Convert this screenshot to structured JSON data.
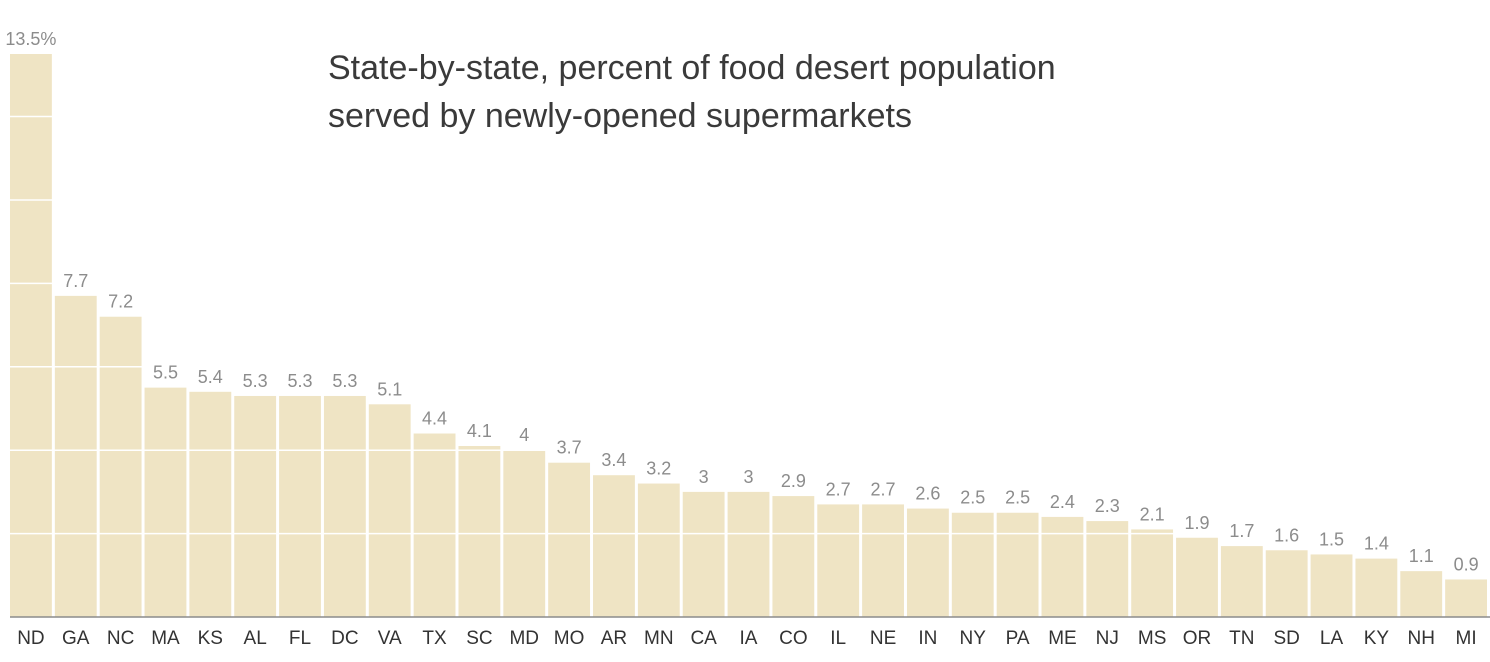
{
  "chart_data": {
    "type": "bar",
    "title_lines": [
      "State-by-state, percent of food desert population",
      "served by newly-opened supermarkets"
    ],
    "categories": [
      "ND",
      "GA",
      "NC",
      "MA",
      "KS",
      "AL",
      "FL",
      "DC",
      "VA",
      "TX",
      "SC",
      "MD",
      "MO",
      "AR",
      "MN",
      "CA",
      "IA",
      "CO",
      "IL",
      "NE",
      "IN",
      "NY",
      "PA",
      "ME",
      "NJ",
      "MS",
      "OR",
      "TN",
      "SD",
      "LA",
      "KY",
      "NH",
      "MI"
    ],
    "values": [
      13.5,
      7.7,
      7.2,
      5.5,
      5.4,
      5.3,
      5.3,
      5.3,
      5.1,
      4.4,
      4.1,
      4,
      3.7,
      3.4,
      3.2,
      3,
      3,
      2.9,
      2.7,
      2.7,
      2.6,
      2.5,
      2.5,
      2.4,
      2.3,
      2.1,
      1.9,
      1.7,
      1.6,
      1.5,
      1.4,
      1.1,
      0.9
    ],
    "value_labels": [
      "13.5%",
      "7.7",
      "7.2",
      "5.5",
      "5.4",
      "5.3",
      "5.3",
      "5.3",
      "5.1",
      "4.4",
      "4.1",
      "4",
      "3.7",
      "3.4",
      "3.2",
      "3",
      "3",
      "2.9",
      "2.7",
      "2.7",
      "2.6",
      "2.5",
      "2.5",
      "2.4",
      "2.3",
      "2.1",
      "1.9",
      "1.7",
      "1.6",
      "1.5",
      "1.4",
      "1.1",
      "0.9"
    ],
    "ylim": [
      0,
      13.5
    ],
    "gridlines": [
      2,
      4,
      6,
      8,
      10,
      12
    ],
    "grid": true,
    "legend": "none",
    "xlabel": "",
    "ylabel": ""
  },
  "colors": {
    "bar": "#efe4c4",
    "value_label": "#8c8c8c",
    "tick_label": "#333333",
    "title": "#3a3a3a",
    "baseline": "#8c8c8c"
  }
}
